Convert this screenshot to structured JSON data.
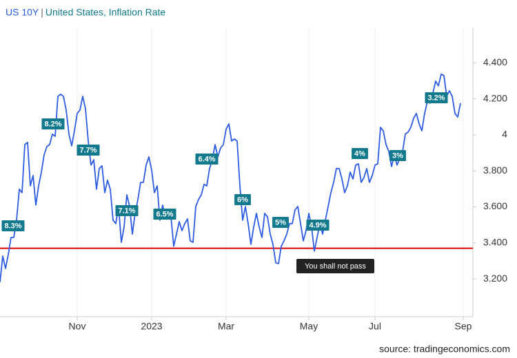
{
  "chart_data": {
    "type": "line",
    "separator": "|",
    "series": [
      {
        "name": "US 10Y",
        "color": "#2d5be3",
        "values": [
          3.182,
          3.327,
          3.258,
          3.335,
          3.43,
          3.43,
          3.526,
          3.698,
          3.679,
          3.946,
          3.958,
          3.717,
          3.774,
          3.61,
          3.717,
          3.793,
          3.889,
          3.935,
          3.946,
          4.004,
          3.992,
          4.214,
          4.226,
          4.214,
          4.138,
          4.004,
          3.939,
          4.023,
          4.119,
          4.138,
          4.214,
          4.145,
          3.966,
          3.832,
          3.862,
          3.698,
          3.813,
          3.828,
          3.679,
          3.748,
          3.698,
          3.526,
          3.507,
          3.602,
          3.403,
          3.488,
          3.667,
          3.602,
          3.449,
          3.564,
          3.641,
          3.736,
          3.736,
          3.832,
          3.878,
          3.805,
          3.679,
          3.717,
          3.526,
          3.61,
          3.533,
          3.564,
          3.545,
          3.381,
          3.449,
          3.518,
          3.468,
          3.507,
          3.533,
          3.411,
          3.403,
          3.602,
          3.641,
          3.667,
          3.725,
          3.717,
          3.813,
          3.862,
          3.946,
          3.878,
          3.927,
          3.946,
          4.031,
          4.061,
          3.966,
          3.977,
          3.966,
          3.717,
          3.526,
          3.602,
          3.507,
          3.392,
          3.488,
          3.564,
          3.488,
          3.43,
          3.564,
          3.545,
          3.449,
          3.392,
          3.289,
          3.285,
          3.381,
          3.411,
          3.449,
          3.507,
          3.507,
          3.583,
          3.602,
          3.507,
          3.411,
          3.468,
          3.564,
          3.488,
          3.354,
          3.43,
          3.507,
          3.449,
          3.526,
          3.602,
          3.679,
          3.736,
          3.813,
          3.813,
          3.755,
          3.679,
          3.717,
          3.793,
          3.755,
          3.832,
          3.839,
          3.736,
          3.763,
          3.813,
          3.736,
          3.774,
          3.832,
          3.839,
          4.042,
          4.023,
          3.946,
          3.908,
          3.824,
          3.889,
          3.832,
          3.87,
          3.908,
          4.004,
          4.015,
          4.042,
          4.092,
          4.119,
          4.061,
          4.023,
          4.119,
          4.184,
          4.176,
          4.233,
          4.298,
          4.272,
          4.337,
          4.329,
          4.214,
          4.245,
          4.214,
          4.119,
          4.099,
          4.176
        ]
      },
      {
        "name": "United States, Inflation Rate",
        "color": "#127a8c",
        "values": [
          8.3,
          8.2,
          7.7,
          7.1,
          6.5,
          6.4,
          6,
          5,
          4.9,
          4,
          3,
          3.2
        ],
        "value_labels": [
          "8.3%",
          "8.2%",
          "7.7%",
          "7.1%",
          "6.5%",
          "6.4%",
          "6%",
          "5%",
          "4.9%",
          "4%",
          "3%",
          "3.2%"
        ]
      }
    ],
    "threshold": {
      "value": 3.37,
      "color": "#e00000",
      "label": "You shall not pass"
    },
    "xlim": [
      0,
      171.5
    ],
    "xticks": [
      {
        "value": 28,
        "label": "Nov"
      },
      {
        "value": 55,
        "label": "2023"
      },
      {
        "value": 82,
        "label": "Mar"
      },
      {
        "value": 112,
        "label": "May"
      },
      {
        "value": 136,
        "label": "Jul"
      },
      {
        "value": 168,
        "label": "Sep"
      }
    ],
    "ylim": [
      2.99,
      4.596
    ],
    "yticks": [
      {
        "value": 3.2,
        "label": "3.200"
      },
      {
        "value": 3.4,
        "label": "3.400"
      },
      {
        "value": 3.6,
        "label": "3.600"
      },
      {
        "value": 3.8,
        "label": "3.800"
      },
      4,
      {
        "value": 4.2,
        "label": "4.200"
      },
      {
        "value": 4.4,
        "label": "4.400"
      }
    ],
    "source": "source: tradingeconomics.com"
  }
}
